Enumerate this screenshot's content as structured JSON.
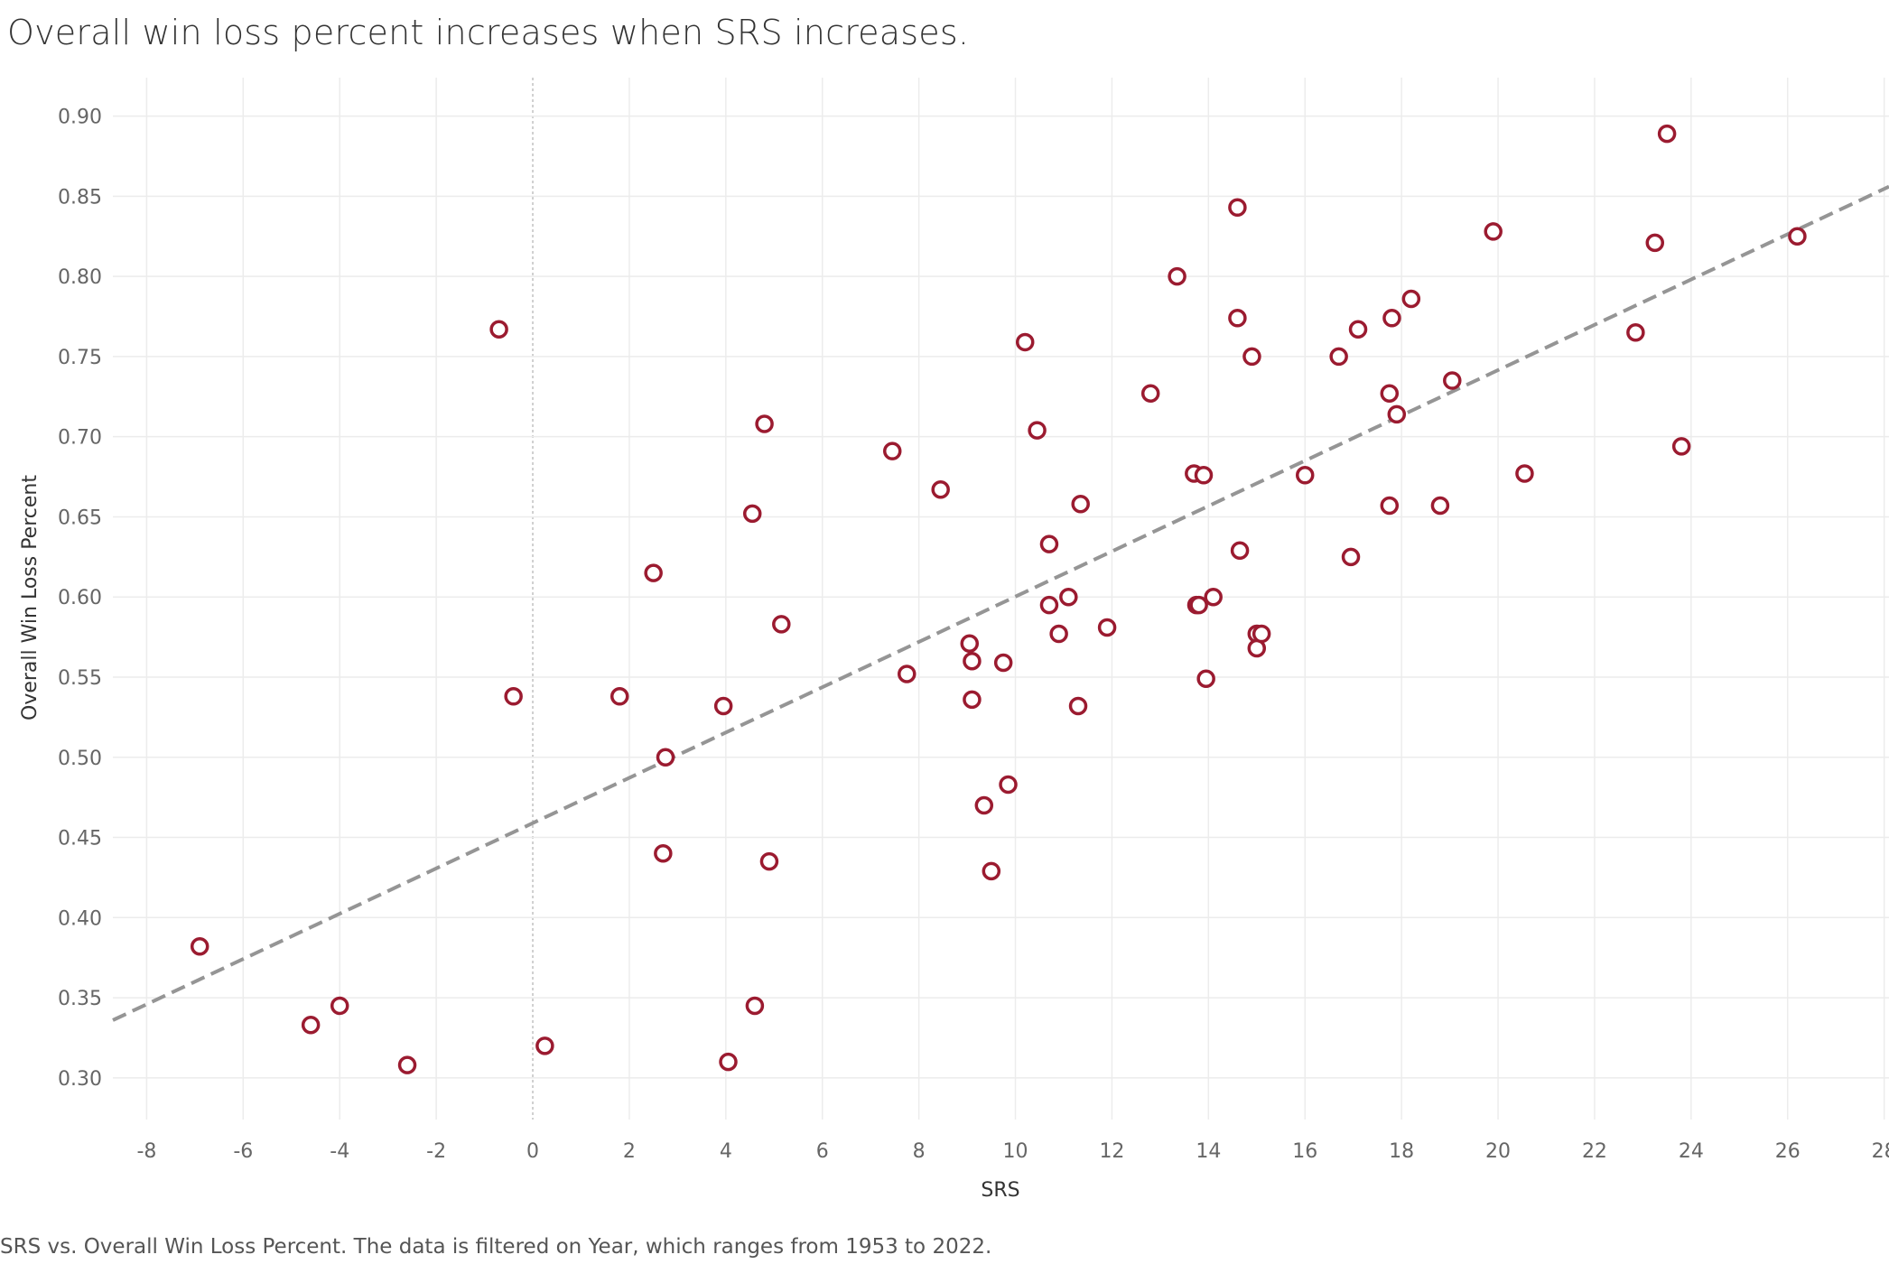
{
  "title": "Overall win loss percent increases when SRS increases.",
  "caption": "SRS vs. Overall Win Loss Percent. The data is filtered on Year, which ranges from 1953 to 2022.",
  "colors": {
    "point": "#9b1b30",
    "trend": "#959595",
    "grid": "#ececec"
  },
  "chart_data": {
    "type": "scatter",
    "xlabel": "SRS",
    "ylabel": "Overall Win Loss Percent",
    "xlim": [
      -8.7,
      28.1
    ],
    "ylim": [
      0.274,
      0.924
    ],
    "x_ticks": [
      -8,
      -6,
      -4,
      -2,
      0,
      2,
      4,
      6,
      8,
      10,
      12,
      14,
      16,
      18,
      20,
      22,
      24,
      26,
      28
    ],
    "y_ticks": [
      "0.30",
      "0.35",
      "0.40",
      "0.45",
      "0.50",
      "0.55",
      "0.60",
      "0.65",
      "0.70",
      "0.75",
      "0.80",
      "0.85",
      "0.90"
    ],
    "grid": true,
    "trend_line": {
      "type": "linear",
      "points": [
        [
          -8.7,
          0.336
        ],
        [
          28.1,
          0.856
        ]
      ]
    },
    "points": [
      {
        "x": -6.9,
        "y": 0.382
      },
      {
        "x": -4.6,
        "y": 0.333
      },
      {
        "x": -4.0,
        "y": 0.345
      },
      {
        "x": -2.6,
        "y": 0.308
      },
      {
        "x": -0.7,
        "y": 0.767
      },
      {
        "x": -0.4,
        "y": 0.538
      },
      {
        "x": 0.25,
        "y": 0.32
      },
      {
        "x": 1.8,
        "y": 0.538
      },
      {
        "x": 2.5,
        "y": 0.615
      },
      {
        "x": 2.7,
        "y": 0.44
      },
      {
        "x": 2.75,
        "y": 0.5
      },
      {
        "x": 3.95,
        "y": 0.532
      },
      {
        "x": 4.05,
        "y": 0.31
      },
      {
        "x": 4.55,
        "y": 0.652
      },
      {
        "x": 4.6,
        "y": 0.345
      },
      {
        "x": 4.8,
        "y": 0.708
      },
      {
        "x": 4.9,
        "y": 0.435
      },
      {
        "x": 5.15,
        "y": 0.583
      },
      {
        "x": 7.45,
        "y": 0.691
      },
      {
        "x": 7.75,
        "y": 0.552
      },
      {
        "x": 8.45,
        "y": 0.667
      },
      {
        "x": 9.05,
        "y": 0.571
      },
      {
        "x": 9.1,
        "y": 0.56
      },
      {
        "x": 9.1,
        "y": 0.536
      },
      {
        "x": 9.35,
        "y": 0.47
      },
      {
        "x": 9.5,
        "y": 0.429
      },
      {
        "x": 9.75,
        "y": 0.559
      },
      {
        "x": 9.85,
        "y": 0.483
      },
      {
        "x": 10.2,
        "y": 0.759
      },
      {
        "x": 10.45,
        "y": 0.704
      },
      {
        "x": 10.7,
        "y": 0.633
      },
      {
        "x": 10.7,
        "y": 0.595
      },
      {
        "x": 10.9,
        "y": 0.577
      },
      {
        "x": 11.1,
        "y": 0.6
      },
      {
        "x": 11.3,
        "y": 0.532
      },
      {
        "x": 11.35,
        "y": 0.658
      },
      {
        "x": 11.9,
        "y": 0.581
      },
      {
        "x": 12.8,
        "y": 0.727
      },
      {
        "x": 13.35,
        "y": 0.8
      },
      {
        "x": 13.7,
        "y": 0.677
      },
      {
        "x": 13.75,
        "y": 0.595
      },
      {
        "x": 13.8,
        "y": 0.595
      },
      {
        "x": 13.9,
        "y": 0.676
      },
      {
        "x": 13.95,
        "y": 0.549
      },
      {
        "x": 14.1,
        "y": 0.6
      },
      {
        "x": 14.6,
        "y": 0.774
      },
      {
        "x": 14.6,
        "y": 0.843
      },
      {
        "x": 14.65,
        "y": 0.629
      },
      {
        "x": 14.9,
        "y": 0.75
      },
      {
        "x": 15.0,
        "y": 0.577
      },
      {
        "x": 15.0,
        "y": 0.568
      },
      {
        "x": 15.1,
        "y": 0.577
      },
      {
        "x": 16.0,
        "y": 0.676
      },
      {
        "x": 16.7,
        "y": 0.75
      },
      {
        "x": 16.95,
        "y": 0.625
      },
      {
        "x": 17.1,
        "y": 0.767
      },
      {
        "x": 17.75,
        "y": 0.727
      },
      {
        "x": 17.75,
        "y": 0.657
      },
      {
        "x": 17.8,
        "y": 0.774
      },
      {
        "x": 17.9,
        "y": 0.714
      },
      {
        "x": 18.2,
        "y": 0.786
      },
      {
        "x": 18.8,
        "y": 0.657
      },
      {
        "x": 19.05,
        "y": 0.735
      },
      {
        "x": 19.9,
        "y": 0.828
      },
      {
        "x": 20.55,
        "y": 0.677
      },
      {
        "x": 22.85,
        "y": 0.765
      },
      {
        "x": 23.25,
        "y": 0.821
      },
      {
        "x": 23.5,
        "y": 0.889
      },
      {
        "x": 23.8,
        "y": 0.694
      },
      {
        "x": 26.2,
        "y": 0.825
      }
    ]
  }
}
